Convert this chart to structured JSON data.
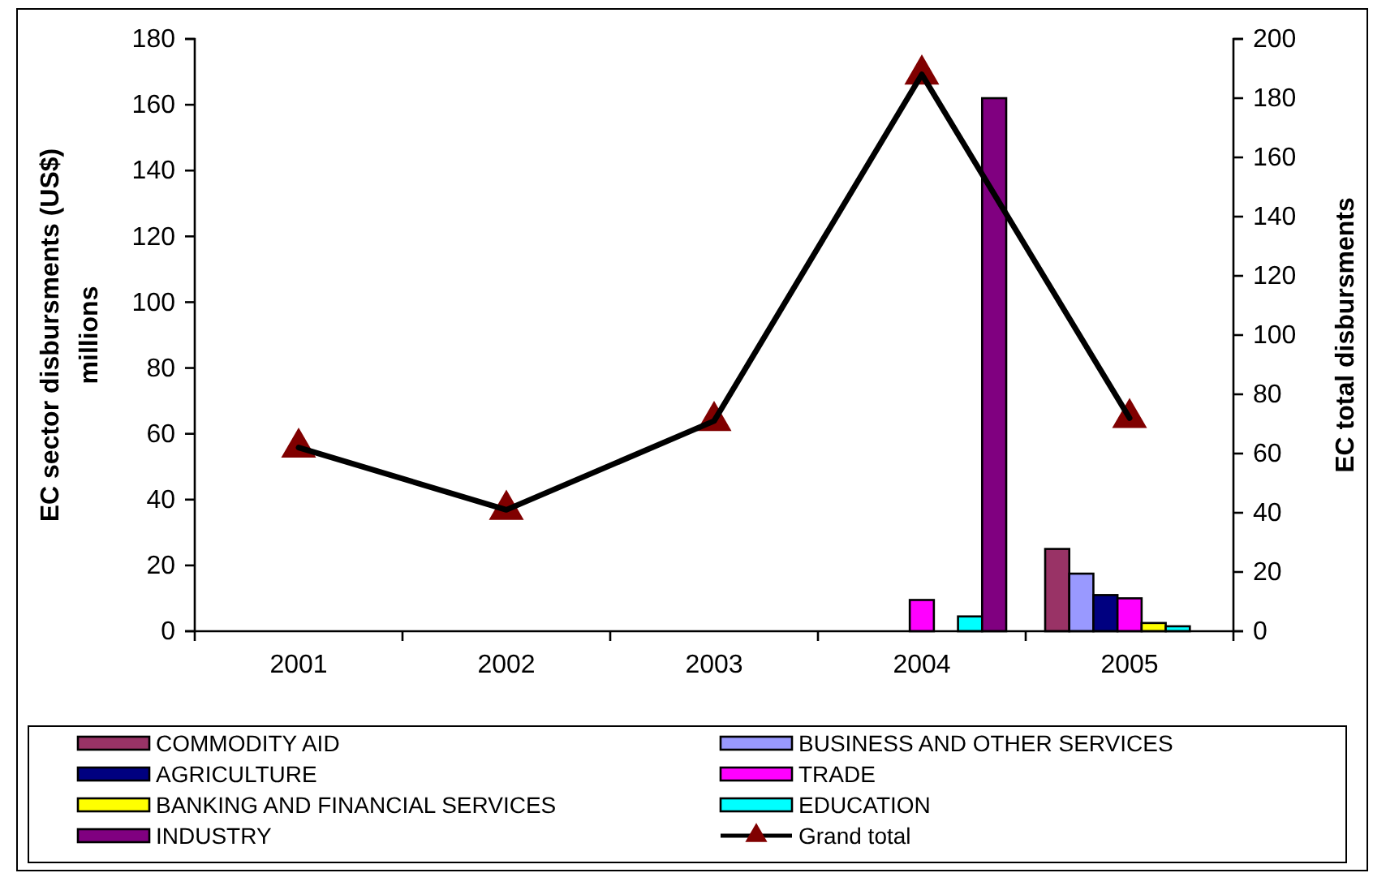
{
  "chart_data": {
    "type": "bar",
    "categories": [
      "2001",
      "2002",
      "2003",
      "2004",
      "2005"
    ],
    "series": [
      {
        "name": "COMMODITY AID",
        "color": "#993366",
        "values": [
          null,
          null,
          null,
          null,
          25
        ]
      },
      {
        "name": "BUSINESS AND OTHER SERVICES",
        "color": "#9999ff",
        "values": [
          null,
          null,
          null,
          null,
          17.5
        ]
      },
      {
        "name": "AGRICULTURE",
        "color": "#000080",
        "values": [
          null,
          null,
          null,
          null,
          11
        ]
      },
      {
        "name": "TRADE",
        "color": "#ff00ff",
        "values": [
          null,
          null,
          null,
          9.5,
          10
        ]
      },
      {
        "name": "BANKING AND FINANCIAL SERVICES",
        "color": "#ffff00",
        "values": [
          null,
          null,
          null,
          null,
          2.5
        ]
      },
      {
        "name": "EDUCATION",
        "color": "#00ffff",
        "values": [
          null,
          null,
          null,
          4.5,
          1.5
        ]
      },
      {
        "name": "INDUSTRY",
        "color": "#800080",
        "values": [
          null,
          null,
          null,
          162,
          null
        ]
      },
      {
        "name": "Grand total",
        "type": "line",
        "axis": "y2",
        "color": "#000000",
        "colors": [
          "#800000",
          "#800000",
          "#800000",
          "#800000",
          "#800000"
        ],
        "values": [
          62,
          41,
          71,
          188,
          72
        ]
      }
    ],
    "ylabel": "EC sector disbursments (US$)\nmillions",
    "y2label": "EC total disbursments",
    "ylim": [
      0,
      180
    ],
    "yticks": [
      0,
      20,
      40,
      60,
      80,
      100,
      120,
      140,
      160,
      180
    ],
    "y2lim": [
      0,
      200
    ],
    "y2ticks": [
      0,
      20,
      40,
      60,
      80,
      100,
      120,
      140,
      160,
      180,
      200
    ],
    "legend": "bottom",
    "marker": "triangle",
    "grid": false
  }
}
